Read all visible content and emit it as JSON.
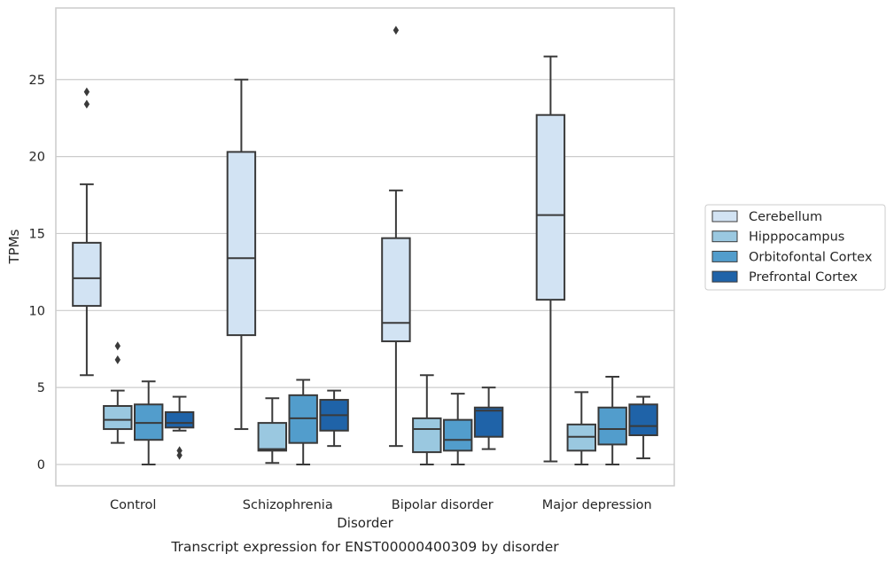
{
  "chart_data": {
    "type": "box",
    "caption": "Transcript expression for ENST00000400309 by disorder",
    "xlabel": "Disorder",
    "ylabel": "TPMs",
    "ylim": [
      -1.3,
      29.0
    ],
    "yticks": [
      0,
      5,
      10,
      15,
      20,
      25
    ],
    "grid": "horizontal",
    "legend_position": "right",
    "categories": [
      "Control",
      "Schizophrenia",
      "Bipolar disorder",
      "Major depression"
    ],
    "series": [
      {
        "name": "Cerebellum",
        "color": "#d2e3f3",
        "boxes": [
          {
            "whisker_low": 5.8,
            "q1": 10.3,
            "median": 12.1,
            "q3": 14.4,
            "whisker_high": 18.2,
            "outliers": [
              23.4,
              24.2
            ]
          },
          {
            "whisker_low": 2.3,
            "q1": 8.4,
            "median": 13.4,
            "q3": 20.3,
            "whisker_high": 25.0,
            "outliers": []
          },
          {
            "whisker_low": 1.2,
            "q1": 8.0,
            "median": 9.2,
            "q3": 14.7,
            "whisker_high": 17.8,
            "outliers": [
              28.2
            ]
          },
          {
            "whisker_low": 0.2,
            "q1": 10.7,
            "median": 16.2,
            "q3": 22.7,
            "whisker_high": 26.5,
            "outliers": []
          }
        ]
      },
      {
        "name": "Hipppocampus",
        "color": "#9ac8e0",
        "boxes": [
          {
            "whisker_low": 1.4,
            "q1": 2.3,
            "median": 2.9,
            "q3": 3.8,
            "whisker_high": 4.8,
            "outliers": [
              6.8,
              7.7
            ]
          },
          {
            "whisker_low": 0.1,
            "q1": 0.9,
            "median": 1.0,
            "q3": 2.7,
            "whisker_high": 4.3,
            "outliers": []
          },
          {
            "whisker_low": 0.0,
            "q1": 0.8,
            "median": 2.3,
            "q3": 3.0,
            "whisker_high": 5.8,
            "outliers": []
          },
          {
            "whisker_low": 0.0,
            "q1": 0.9,
            "median": 1.8,
            "q3": 2.6,
            "whisker_high": 4.7,
            "outliers": []
          }
        ]
      },
      {
        "name": "Orbitofontal Cortex",
        "color": "#529dcc",
        "boxes": [
          {
            "whisker_low": 0.0,
            "q1": 1.6,
            "median": 2.7,
            "q3": 3.9,
            "whisker_high": 5.4,
            "outliers": []
          },
          {
            "whisker_low": 0.0,
            "q1": 1.4,
            "median": 3.0,
            "q3": 4.5,
            "whisker_high": 5.5,
            "outliers": []
          },
          {
            "whisker_low": 0.0,
            "q1": 0.9,
            "median": 1.6,
            "q3": 2.9,
            "whisker_high": 4.6,
            "outliers": []
          },
          {
            "whisker_low": 0.0,
            "q1": 1.3,
            "median": 2.3,
            "q3": 3.7,
            "whisker_high": 5.7,
            "outliers": []
          }
        ]
      },
      {
        "name": "Prefrontal Cortex",
        "color": "#1f63a8",
        "boxes": [
          {
            "whisker_low": 2.2,
            "q1": 2.4,
            "median": 2.7,
            "q3": 3.4,
            "whisker_high": 4.4,
            "outliers": [
              0.6,
              0.9
            ]
          },
          {
            "whisker_low": 1.2,
            "q1": 2.2,
            "median": 3.2,
            "q3": 4.2,
            "whisker_high": 4.8,
            "outliers": []
          },
          {
            "whisker_low": 1.0,
            "q1": 1.8,
            "median": 3.5,
            "q3": 3.7,
            "whisker_high": 5.0,
            "outliers": []
          },
          {
            "whisker_low": 0.4,
            "q1": 1.9,
            "median": 2.5,
            "q3": 3.9,
            "whisker_high": 4.4,
            "outliers": []
          }
        ]
      }
    ]
  }
}
